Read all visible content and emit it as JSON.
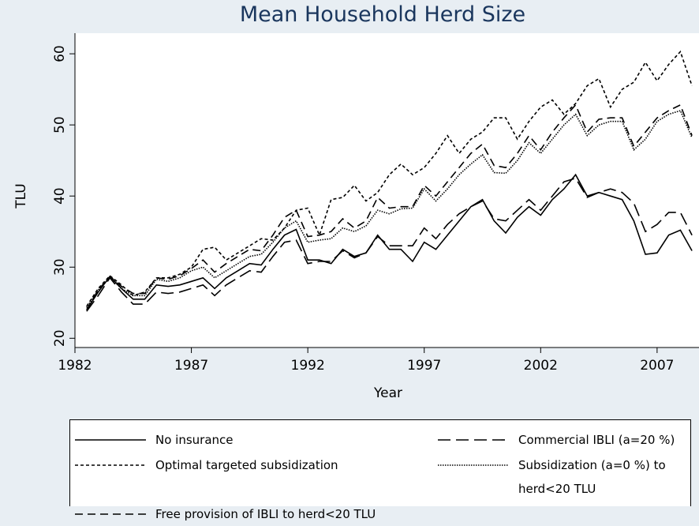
{
  "chart_data": {
    "type": "line",
    "title": "Mean Household Herd Size",
    "x_label": "Year",
    "y_label": "TLU",
    "x": [
      1982.5,
      1983,
      1983.5,
      1984,
      1984.5,
      1985,
      1985.5,
      1986,
      1986.5,
      1987,
      1987.5,
      1988,
      1988.5,
      1989,
      1989.5,
      1990,
      1990.5,
      1991,
      1991.5,
      1992,
      1992.5,
      1993,
      1993.5,
      1994,
      1994.5,
      1995,
      1995.5,
      1996,
      1996.5,
      1997,
      1997.5,
      1998,
      1998.5,
      1999,
      1999.5,
      2000,
      2000.5,
      2001,
      2001.5,
      2002,
      2002.5,
      2003,
      2003.5,
      2004,
      2004.5,
      2005,
      2005.5,
      2006,
      2006.5,
      2007,
      2007.5,
      2008,
      2008.5
    ],
    "series": [
      {
        "name": "No insurance",
        "color": "#000000",
        "dash": "none",
        "values": [
          24,
          26.5,
          28.7,
          27,
          25.5,
          25.5,
          27.5,
          27.3,
          27.5,
          28,
          28.5,
          27,
          28.5,
          29.5,
          30.5,
          30.3,
          32.5,
          34.5,
          35.3,
          31,
          31,
          30.5,
          32.5,
          31.5,
          32,
          34.5,
          32.5,
          32.5,
          30.8,
          33.5,
          32.5,
          34.5,
          36.5,
          38.5,
          39.5,
          36.5,
          34.8,
          37,
          38.5,
          37.3,
          39.5,
          41,
          43,
          40,
          40.5,
          40,
          39.5,
          36.5,
          31.8,
          32,
          34.5,
          35.2,
          32.3
        ]
      },
      {
        "name": "Commercial IBLI (a=20 %)",
        "color": "#000000",
        "dash": "16,7",
        "values": [
          23.8,
          26,
          28.5,
          26.5,
          24.8,
          24.8,
          26.5,
          26.3,
          26.5,
          27,
          27.5,
          26,
          27.5,
          28.5,
          29.5,
          29.3,
          31.5,
          33.5,
          33.8,
          30.5,
          30.8,
          30.8,
          32.3,
          31.3,
          32,
          34.3,
          33,
          33,
          33,
          35.5,
          34,
          36,
          37.5,
          38.5,
          39.3,
          36.8,
          36.5,
          38,
          39.5,
          38,
          40,
          42,
          42.5,
          39.8,
          40.5,
          41,
          40.5,
          39,
          35,
          36,
          37.7,
          37.7,
          34.5
        ]
      },
      {
        "name": "Optimal targeted subsidization",
        "color": "#000000",
        "dash": "4,3",
        "values": [
          24.5,
          27,
          28.8,
          27.5,
          26,
          26.5,
          28.5,
          28.5,
          29,
          30,
          32.5,
          32.8,
          31,
          32,
          33,
          34,
          33.8,
          35.5,
          38,
          38.3,
          34.5,
          39.5,
          39.8,
          41.5,
          39.3,
          40.5,
          43,
          44.5,
          43,
          44,
          46,
          48.5,
          46,
          48,
          49,
          51,
          51,
          48,
          50.5,
          52.5,
          53.5,
          51.5,
          53,
          55.5,
          56.5,
          52.5,
          55,
          56,
          58.8,
          56.2,
          58.5,
          60.3,
          55.5
        ]
      },
      {
        "name": "Subsidization (a=0 %) to herd<20 TLU",
        "color": "#000000",
        "dash": "1.5,1.5",
        "values": [
          24.3,
          26.8,
          28.5,
          27,
          26,
          26,
          28.3,
          28,
          28.5,
          29.5,
          30,
          28.5,
          29.5,
          30.5,
          31.5,
          31.8,
          33.5,
          35.5,
          36.5,
          33.5,
          33.8,
          34,
          35.5,
          35,
          35.8,
          38,
          37.5,
          38.2,
          38.3,
          41,
          39.3,
          41,
          43,
          44.5,
          45.8,
          43.3,
          43.2,
          45,
          47.5,
          46,
          48,
          50,
          51.5,
          48.5,
          50,
          50.5,
          50.5,
          46.5,
          48,
          50.5,
          51.5,
          52,
          48.2
        ]
      },
      {
        "name": "Free provision of IBLI to herd<20 TLU",
        "color": "#000000",
        "dash": "10,6",
        "values": [
          24,
          26.8,
          28.7,
          27.3,
          26.3,
          26.3,
          28.5,
          28.3,
          28.8,
          29.8,
          31,
          29.3,
          30.5,
          31.5,
          32.5,
          32.3,
          34.5,
          37,
          38,
          34.3,
          34.5,
          35,
          36.8,
          35.5,
          36.5,
          39.8,
          38.3,
          38.5,
          38.5,
          41.5,
          40,
          42,
          44,
          46,
          47.3,
          44.3,
          44,
          46,
          48.5,
          46.5,
          49,
          51,
          52.8,
          49,
          50.8,
          51,
          51,
          47,
          49,
          51,
          52,
          52.8,
          48.5
        ]
      }
    ],
    "xlim": [
      1982,
      2008.8
    ],
    "ylim": [
      18.7,
      62.9
    ],
    "xticks": [
      1982,
      1987,
      1992,
      1997,
      2002,
      2007
    ],
    "yticks": [
      20,
      30,
      40,
      50,
      60
    ]
  }
}
